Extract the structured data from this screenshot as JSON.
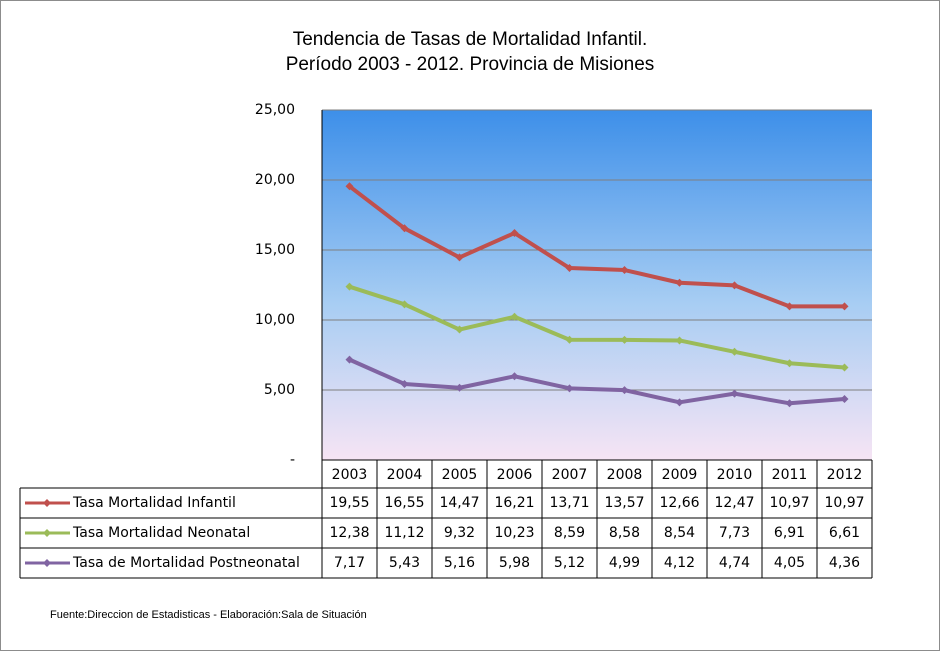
{
  "chart_data": {
    "type": "line",
    "title": "Tendencia de Tasas de Mortalidad Infantil.",
    "subtitle": "Período 2003 - 2012. Provincia de Misiones",
    "source": "Fuente:Direccion de Estadisticas - Elaboración:Sala de Situación",
    "categories": [
      "2003",
      "2004",
      "2005",
      "2006",
      "2007",
      "2008",
      "2009",
      "2010",
      "2011",
      "2012"
    ],
    "series": [
      {
        "name": "Tasa Mortalidad Infantil",
        "color": "#c0504d",
        "values": [
          19.55,
          16.55,
          14.47,
          16.21,
          13.71,
          13.57,
          12.66,
          12.47,
          10.97,
          10.97
        ],
        "value_labels": [
          "19,55",
          "16,55",
          "14,47",
          "16,21",
          "13,71",
          "13,57",
          "12,66",
          "12,47",
          "10,97",
          "10,97"
        ]
      },
      {
        "name": "Tasa Mortalidad Neonatal",
        "color": "#9bbb59",
        "values": [
          12.38,
          11.12,
          9.32,
          10.23,
          8.59,
          8.58,
          8.54,
          7.73,
          6.91,
          6.61
        ],
        "value_labels": [
          "12,38",
          "11,12",
          "9,32",
          "10,23",
          "8,59",
          "8,58",
          "8,54",
          "7,73",
          "6,91",
          "6,61"
        ]
      },
      {
        "name": "Tasa de Mortalidad Postneonatal",
        "color": "#8064a2",
        "values": [
          7.17,
          5.43,
          5.16,
          5.98,
          5.12,
          4.99,
          4.12,
          4.74,
          4.05,
          4.36
        ],
        "value_labels": [
          "7,17",
          "5,43",
          "5,16",
          "5,98",
          "5,12",
          "4,99",
          "4,12",
          "4,74",
          "4,05",
          "4,36"
        ]
      }
    ],
    "ylim": [
      0,
      25
    ],
    "yticks": [
      {
        "value": 0,
        "label": "-"
      },
      {
        "value": 5,
        "label": "5,00"
      },
      {
        "value": 10,
        "label": "10,00"
      },
      {
        "value": 15,
        "label": "15,00"
      },
      {
        "value": 20,
        "label": "20,00"
      },
      {
        "value": 25,
        "label": "25,00"
      }
    ],
    "grid": true
  }
}
